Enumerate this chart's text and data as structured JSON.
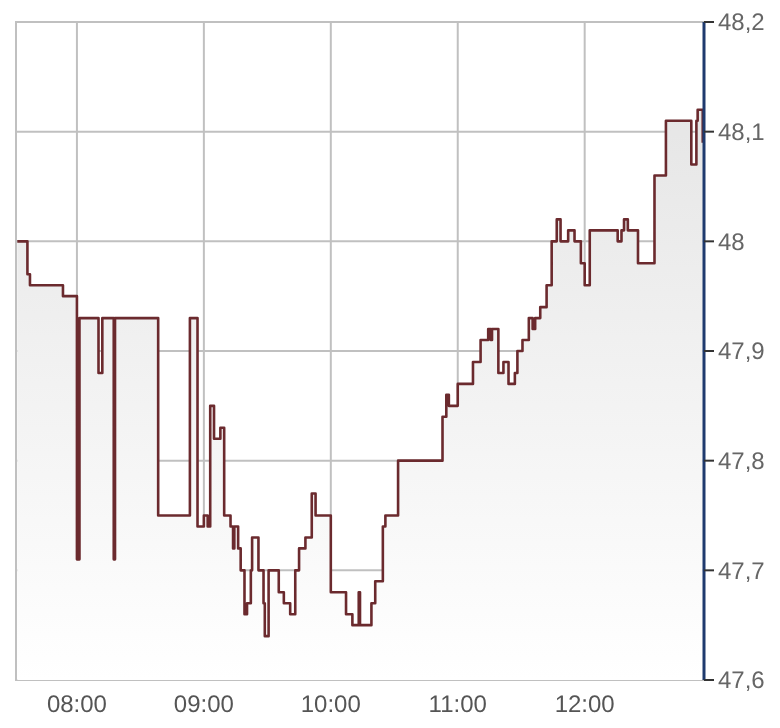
{
  "chart_data": {
    "type": "area",
    "x": [
      7.53,
      7.61,
      7.61,
      7.63,
      7.63,
      7.89,
      7.89,
      8.0,
      8.0,
      8.02,
      8.02,
      8.17,
      8.17,
      8.2,
      8.2,
      8.29,
      8.29,
      8.3,
      8.3,
      8.64,
      8.64,
      8.89,
      8.89,
      8.95,
      8.95,
      9.0,
      9.0,
      9.03,
      9.03,
      9.05,
      9.05,
      9.08,
      9.08,
      9.13,
      9.13,
      9.16,
      9.16,
      9.21,
      9.21,
      9.23,
      9.23,
      9.24,
      9.24,
      9.27,
      9.27,
      9.29,
      9.29,
      9.32,
      9.32,
      9.34,
      9.34,
      9.37,
      9.37,
      9.38,
      9.38,
      9.43,
      9.43,
      9.47,
      9.47,
      9.48,
      9.48,
      9.51,
      9.51,
      9.59,
      9.59,
      9.63,
      9.63,
      9.68,
      9.68,
      9.72,
      9.72,
      9.75,
      9.75,
      9.8,
      9.8,
      9.85,
      9.85,
      9.88,
      9.88,
      10.0,
      10.0,
      10.12,
      10.12,
      10.17,
      10.17,
      10.22,
      10.22,
      10.23,
      10.23,
      10.32,
      10.32,
      10.35,
      10.35,
      10.41,
      10.41,
      10.43,
      10.43,
      10.53,
      10.53,
      10.88,
      10.88,
      10.91,
      10.91,
      10.93,
      10.93,
      11.0,
      11.0,
      11.12,
      11.12,
      11.18,
      11.18,
      11.24,
      11.24,
      11.26,
      11.26,
      11.27,
      11.27,
      11.32,
      11.32,
      11.36,
      11.36,
      11.4,
      11.4,
      11.45,
      11.45,
      11.47,
      11.47,
      11.51,
      11.51,
      11.56,
      11.56,
      11.59,
      11.59,
      11.61,
      11.61,
      11.65,
      11.65,
      11.7,
      11.7,
      11.74,
      11.74,
      11.78,
      11.78,
      11.81,
      11.81,
      11.87,
      11.87,
      11.92,
      11.92,
      11.97,
      11.97,
      12.0,
      12.0,
      12.04,
      12.04,
      12.26,
      12.26,
      12.29,
      12.29,
      12.31,
      12.31,
      12.34,
      12.34,
      12.42,
      12.42,
      12.55,
      12.55,
      12.64,
      12.64,
      12.84,
      12.84,
      12.88,
      12.88,
      12.89,
      12.89,
      12.93,
      12.93
    ],
    "series": [
      {
        "color": "#6b2a2e",
        "values": [
          48.0,
          48.0,
          47.97,
          47.97,
          47.96,
          47.96,
          47.95,
          47.95,
          47.71,
          47.71,
          47.93,
          47.93,
          47.88,
          47.88,
          47.93,
          47.93,
          47.71,
          47.71,
          47.93,
          47.93,
          47.75,
          47.75,
          47.93,
          47.93,
          47.74,
          47.74,
          47.75,
          47.75,
          47.74,
          47.74,
          47.85,
          47.85,
          47.82,
          47.82,
          47.83,
          47.83,
          47.75,
          47.75,
          47.74,
          47.74,
          47.72,
          47.72,
          47.74,
          47.74,
          47.72,
          47.72,
          47.7,
          47.7,
          47.66,
          47.66,
          47.67,
          47.67,
          47.7,
          47.7,
          47.73,
          47.73,
          47.7,
          47.7,
          47.67,
          47.67,
          47.64,
          47.64,
          47.7,
          47.7,
          47.68,
          47.68,
          47.67,
          47.67,
          47.66,
          47.66,
          47.7,
          47.7,
          47.72,
          47.72,
          47.73,
          47.73,
          47.77,
          47.77,
          47.75,
          47.75,
          47.68,
          47.68,
          47.66,
          47.66,
          47.65,
          47.65,
          47.68,
          47.68,
          47.65,
          47.65,
          47.67,
          47.67,
          47.69,
          47.69,
          47.74,
          47.74,
          47.75,
          47.75,
          47.8,
          47.8,
          47.84,
          47.84,
          47.86,
          47.86,
          47.85,
          47.85,
          47.87,
          47.87,
          47.89,
          47.89,
          47.91,
          47.91,
          47.92,
          47.92,
          47.91,
          47.91,
          47.92,
          47.92,
          47.88,
          47.88,
          47.89,
          47.89,
          47.87,
          47.87,
          47.88,
          47.88,
          47.9,
          47.9,
          47.91,
          47.91,
          47.93,
          47.93,
          47.92,
          47.92,
          47.93,
          47.93,
          47.94,
          47.94,
          47.96,
          47.96,
          48.0,
          48.0,
          48.02,
          48.02,
          48.0,
          48.0,
          48.01,
          48.01,
          48.0,
          48.0,
          47.98,
          47.98,
          47.96,
          47.96,
          48.01,
          48.01,
          48.0,
          48.0,
          48.01,
          48.01,
          48.02,
          48.02,
          48.01,
          48.01,
          47.98,
          47.98,
          48.06,
          48.06,
          48.11,
          48.11,
          48.07,
          48.07,
          48.11,
          48.11,
          48.12,
          48.12,
          48.09
        ]
      }
    ],
    "xlim": [
      7.52,
      12.94
    ],
    "xticks": [
      {
        "value": 8,
        "label": "08:00"
      },
      {
        "value": 9,
        "label": "09:00"
      },
      {
        "value": 10,
        "label": "10:00"
      },
      {
        "value": 11,
        "label": "11:00"
      },
      {
        "value": 12,
        "label": "12:00"
      }
    ],
    "ylim": [
      47.6,
      48.2
    ],
    "yticks": [
      {
        "value": 47.6,
        "label": "47,6"
      },
      {
        "value": 47.7,
        "label": "47,7"
      },
      {
        "value": 47.8,
        "label": "47,8"
      },
      {
        "value": 47.9,
        "label": "47,9"
      },
      48,
      {
        "value": 48.1,
        "label": "48,1"
      },
      {
        "value": 48.2,
        "label": "48,2"
      }
    ],
    "grid": true
  }
}
